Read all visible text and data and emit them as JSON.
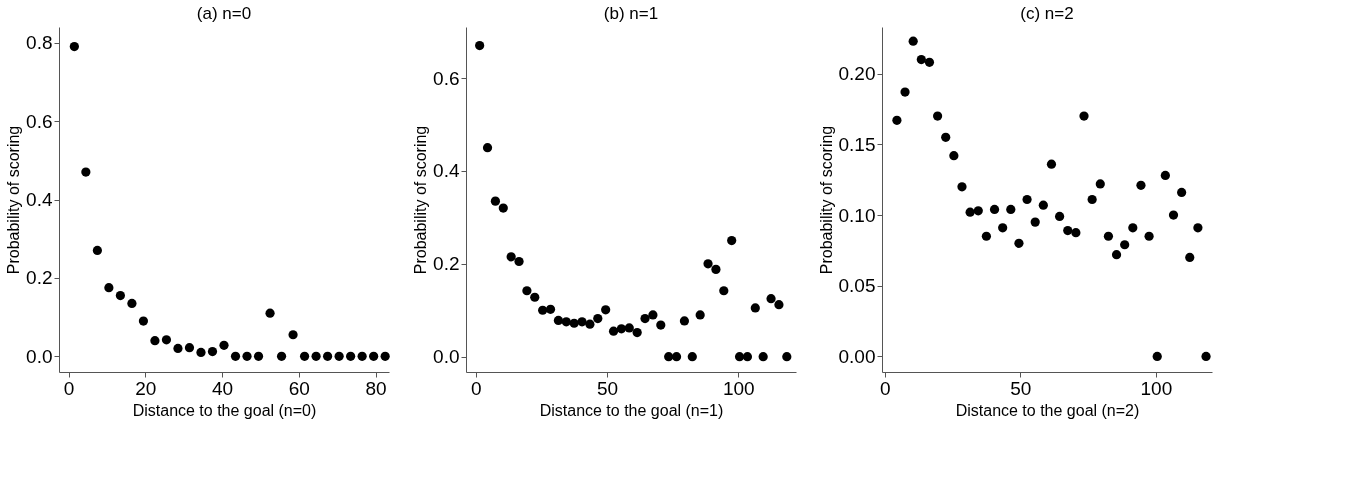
{
  "chart_data": [
    {
      "type": "scatter",
      "title": "(a) n=0",
      "xlabel": "Distance to the goal (n=0)",
      "ylabel": "Probability of scoring",
      "color": "#000000",
      "marker": "circle",
      "x": [
        1.5,
        4.5,
        7.5,
        10.5,
        13.5,
        16.5,
        19.5,
        22.5,
        25.5,
        28.5,
        31.5,
        34.5,
        37.5,
        40.5,
        43.5,
        46.5,
        49.5,
        52.5,
        55.5,
        58.5,
        61.5,
        64.5,
        67.5,
        70.5,
        73.5,
        76.5,
        79.5,
        82.5
      ],
      "values": [
        0.79,
        0.47,
        0.27,
        0.175,
        0.155,
        0.135,
        0.09,
        0.04,
        0.042,
        0.02,
        0.022,
        0.01,
        0.012,
        0.028,
        0,
        0,
        0,
        0.11,
        0,
        0.055,
        0,
        0,
        0,
        0,
        0,
        0,
        0,
        0
      ],
      "xlim": [
        -2.5,
        83.5
      ],
      "ylim": [
        -0.04,
        0.84
      ],
      "xticks": [
        0,
        20,
        40,
        60,
        80
      ],
      "yticks": [
        {
          "value": 0,
          "label": "0.0"
        },
        0.2,
        0.4,
        0.6,
        0.8
      ]
    },
    {
      "type": "scatter",
      "title": "(b) n=1",
      "xlabel": "Distance to the goal (n=1)",
      "ylabel": "Probability of scoring",
      "color": "#000000",
      "marker": "circle",
      "x": [
        1.5,
        4.5,
        7.5,
        10.5,
        13.5,
        16.5,
        19.5,
        22.5,
        25.5,
        28.5,
        31.5,
        34.5,
        37.5,
        40.5,
        43.5,
        46.5,
        49.5,
        52.5,
        55.5,
        58.5,
        61.5,
        64.5,
        67.5,
        70.5,
        73.5,
        76.5,
        79.5,
        82.5,
        85.5,
        88.5,
        91.5,
        94.5,
        97.5,
        100.5,
        103.5,
        106.5,
        109.5,
        112.5,
        115.5,
        118.5
      ],
      "values": [
        0.67,
        0.45,
        0.335,
        0.32,
        0.215,
        0.205,
        0.142,
        0.128,
        0.1,
        0.102,
        0.078,
        0.075,
        0.072,
        0.075,
        0.07,
        0.082,
        0.101,
        0.055,
        0.06,
        0.062,
        0.052,
        0.082,
        0.09,
        0.068,
        0,
        0,
        0.077,
        0,
        0.09,
        0.2,
        0.188,
        0.142,
        0.25,
        0,
        0,
        0.105,
        0,
        0.125,
        0.112,
        0
      ],
      "xlim": [
        -3.7,
        122
      ],
      "ylim": [
        -0.033,
        0.71
      ],
      "xticks": [
        0,
        50,
        100
      ],
      "yticks": [
        {
          "value": 0,
          "label": "0.0"
        },
        0.2,
        0.4,
        0.6
      ]
    },
    {
      "type": "scatter",
      "title": "(c) n=2",
      "xlabel": "Distance to the goal (n=2)",
      "ylabel": "Probability of scoring",
      "color": "#000000",
      "marker": "circle",
      "x": [
        4.5,
        7.5,
        10.5,
        13.5,
        16.5,
        19.5,
        22.5,
        25.5,
        28.5,
        31.5,
        34.5,
        37.5,
        40.5,
        43.5,
        46.5,
        49.5,
        52.5,
        55.5,
        58.5,
        61.5,
        64.5,
        67.5,
        70.5,
        73.5,
        76.5,
        79.5,
        82.5,
        85.5,
        88.5,
        91.5,
        94.5,
        97.5,
        100.5,
        103.5,
        106.5,
        109.5,
        112.5,
        115.5,
        118.5
      ],
      "values": [
        0.167,
        0.187,
        0.223,
        0.21,
        0.208,
        0.17,
        0.155,
        0.142,
        0.12,
        0.102,
        0.103,
        0.085,
        0.104,
        0.091,
        0.104,
        0.08,
        0.111,
        0.095,
        0.107,
        0.136,
        0.099,
        0.089,
        0.0875,
        0.17,
        0.111,
        0.122,
        0.085,
        0.072,
        0.079,
        0.091,
        0.121,
        0.085,
        0,
        0.128,
        0.1,
        0.116,
        0.07,
        0.091,
        0
      ],
      "xlim": [
        -1,
        120.7
      ],
      "ylim": [
        -0.011,
        0.233
      ],
      "xticks": [
        0,
        50,
        100
      ],
      "yticks": [
        {
          "value": 0,
          "label": "0.00"
        },
        {
          "value": 0.05,
          "label": "0.05"
        },
        {
          "value": 0.1,
          "label": "0.10"
        },
        {
          "value": 0.15,
          "label": "0.15"
        },
        {
          "value": 0.2,
          "label": "0.20"
        }
      ]
    }
  ]
}
